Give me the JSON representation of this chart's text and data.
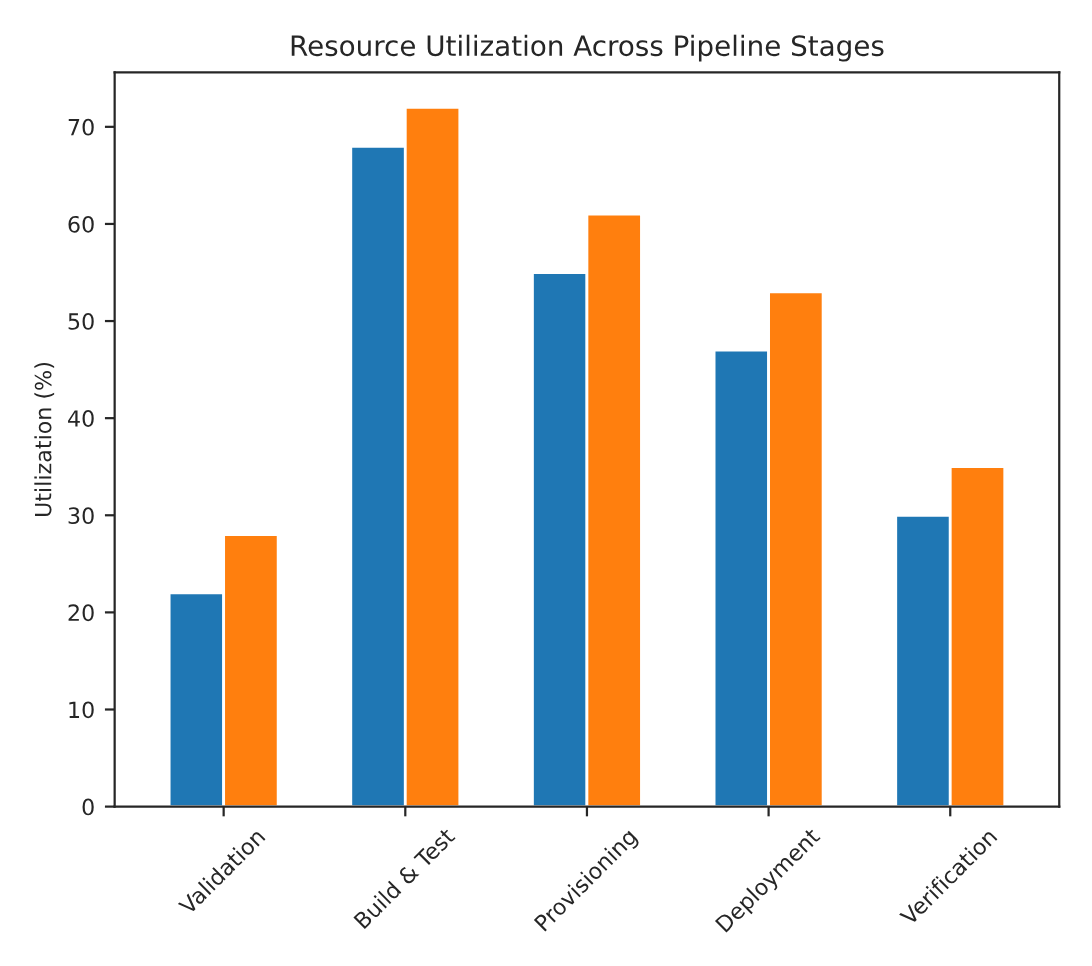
{
  "chart_data": {
    "type": "bar",
    "title": "Resource Utilization Across Pipeline Stages",
    "ylabel": "Utilization (%)",
    "categories": [
      "Validation",
      "Build & Test",
      "Provisioning",
      "Deployment",
      "Verification"
    ],
    "series": [
      {
        "color": "#1f77b4",
        "values": [
          22,
          68,
          55,
          47,
          30
        ]
      },
      {
        "color": "#ff7f0e",
        "values": [
          28,
          72,
          61,
          53,
          35
        ]
      }
    ],
    "ylim": [
      0,
      75.6
    ],
    "yticks": [
      0,
      10,
      20,
      30,
      40,
      50,
      60,
      70
    ],
    "grid": false,
    "legend": false
  }
}
